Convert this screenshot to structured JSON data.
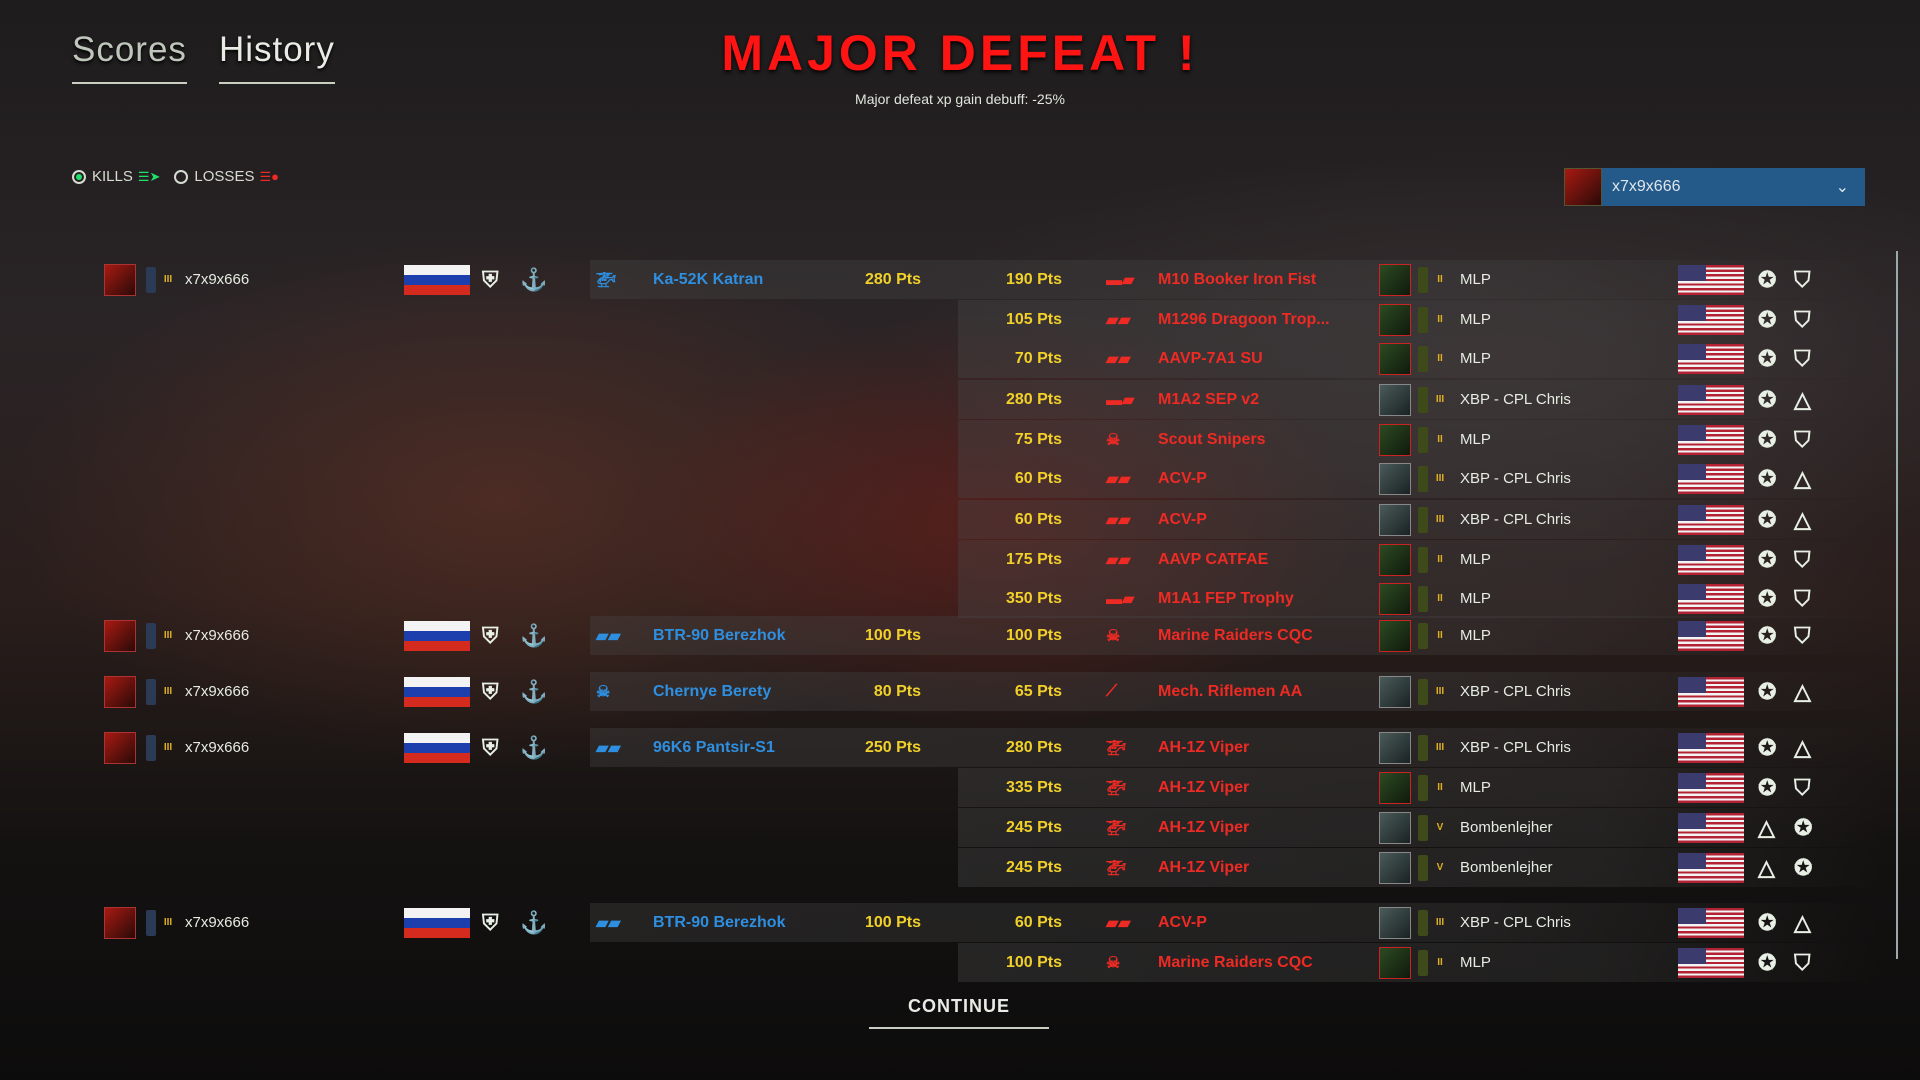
{
  "tabs": [
    {
      "label": "Scores",
      "active": false
    },
    {
      "label": "History",
      "active": true
    }
  ],
  "header": {
    "title": "MAJOR DEFEAT !",
    "subtitle": "Major defeat xp gain debuff: -25%"
  },
  "filters": {
    "kills": "KILLS",
    "losses": "LOSSES",
    "selected": "kills"
  },
  "player_select": {
    "value": "x7x9x666"
  },
  "colors": {
    "friendly": "#2e8fe0",
    "enemy": "#ee2a24",
    "points": "#f2d02a",
    "title": "#ff1414",
    "dropdown": "#245a8a"
  },
  "groups": [
    {
      "player": "x7x9x666",
      "unit": "Ka-52K Katran",
      "unit_icon": "helicopter-icon",
      "points": "280 Pts",
      "kills": [
        {
          "pts": "190 Pts",
          "unit": "M10 Booker Iron Fist",
          "icon": "tank-icon",
          "player": "MLP",
          "rank": "II"
        },
        {
          "pts": "105 Pts",
          "unit": "M1296 Dragoon Trop...",
          "icon": "ifv-icon",
          "player": "MLP",
          "rank": "II"
        },
        {
          "pts": "70 Pts",
          "unit": "AAVP-7A1 SU",
          "icon": "apc-icon",
          "player": "MLP",
          "rank": "II"
        },
        {
          "pts": "280 Pts",
          "unit": "M1A2 SEP v2",
          "icon": "tank-icon",
          "player": "XBP - CPL Chris",
          "rank": "III"
        },
        {
          "pts": "75 Pts",
          "unit": "Scout Snipers",
          "icon": "infantry-icon",
          "player": "MLP",
          "rank": "II"
        },
        {
          "pts": "60 Pts",
          "unit": "ACV-P",
          "icon": "ifv-icon",
          "player": "XBP - CPL Chris",
          "rank": "III"
        },
        {
          "pts": "60 Pts",
          "unit": "ACV-P",
          "icon": "ifv-icon",
          "player": "XBP - CPL Chris",
          "rank": "III"
        },
        {
          "pts": "175 Pts",
          "unit": "AAVP CATFAE",
          "icon": "apc-icon",
          "player": "MLP",
          "rank": "II"
        },
        {
          "pts": "350 Pts",
          "unit": "M1A1 FEP Trophy",
          "icon": "tank-icon",
          "player": "MLP",
          "rank": "II"
        }
      ]
    },
    {
      "player": "x7x9x666",
      "unit": "BTR-90 Berezhok",
      "unit_icon": "ifv-icon",
      "points": "100 Pts",
      "kills": [
        {
          "pts": "100 Pts",
          "unit": "Marine Raiders CQC",
          "icon": "infantry-icon",
          "player": "MLP",
          "rank": "II"
        }
      ]
    },
    {
      "player": "x7x9x666",
      "unit": "Chernye Berety",
      "unit_icon": "infantry-icon",
      "points": "80 Pts",
      "kills": [
        {
          "pts": "65 Pts",
          "unit": "Mech. Riflemen AA",
          "icon": "aa-infantry-icon",
          "player": "XBP - CPL Chris",
          "rank": "III"
        }
      ]
    },
    {
      "player": "x7x9x666",
      "unit": "96K6 Pantsir-S1",
      "unit_icon": "aa-vehicle-icon",
      "points": "250 Pts",
      "kills": [
        {
          "pts": "280 Pts",
          "unit": "AH-1Z Viper",
          "icon": "helicopter-icon",
          "player": "XBP - CPL Chris",
          "rank": "III"
        },
        {
          "pts": "335 Pts",
          "unit": "AH-1Z Viper",
          "icon": "helicopter-icon",
          "player": "MLP",
          "rank": "II"
        },
        {
          "pts": "245 Pts",
          "unit": "AH-1Z Viper",
          "icon": "helicopter-icon",
          "player": "Bombenlejher",
          "rank": "V"
        },
        {
          "pts": "245 Pts",
          "unit": "AH-1Z Viper",
          "icon": "helicopter-icon",
          "player": "Bombenlejher",
          "rank": "V"
        }
      ]
    },
    {
      "player": "x7x9x666",
      "unit": "BTR-90 Berezhok",
      "unit_icon": "ifv-icon",
      "points": "100 Pts",
      "kills": [
        {
          "pts": "60 Pts",
          "unit": "ACV-P",
          "icon": "ifv-icon",
          "player": "XBP - CPL Chris",
          "rank": "III"
        },
        {
          "pts": "100 Pts",
          "unit": "Marine Raiders CQC",
          "icon": "infantry-icon",
          "player": "MLP",
          "rank": "II"
        }
      ]
    }
  ],
  "continue_label": "CONTINUE"
}
